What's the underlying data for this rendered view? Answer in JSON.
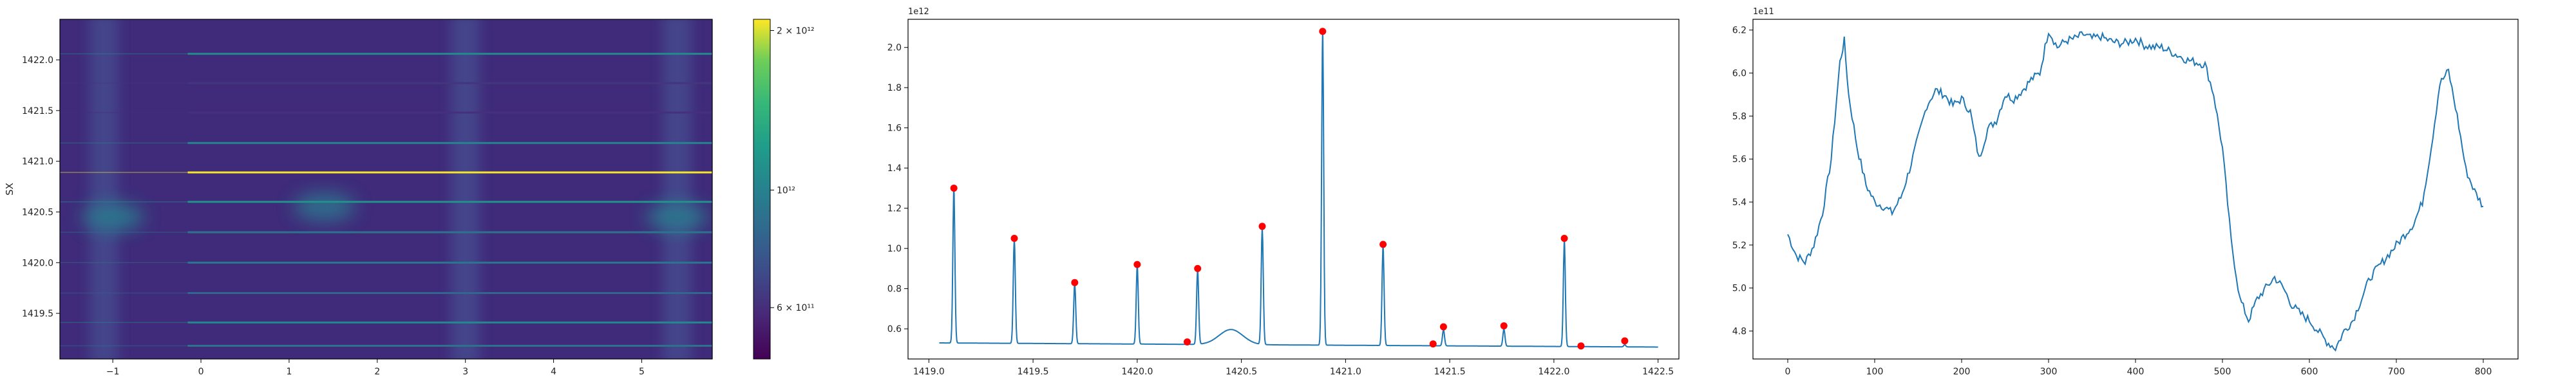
{
  "chart_data": [
    {
      "type": "heatmap",
      "ylabel": "SX",
      "xlabel": "",
      "xlim": [
        -1.6,
        5.8
      ],
      "ylim": [
        1419.05,
        1422.4
      ],
      "xticks": [
        -1,
        0,
        1,
        2,
        3,
        4,
        5
      ],
      "yticks": [
        1419.5,
        1420.0,
        1420.5,
        1421.0,
        1421.5,
        1422.0
      ],
      "ytick_labels": [
        "1419.5",
        "1420.0",
        "1420.5",
        "1421.0",
        "1421.5",
        "1422.0"
      ],
      "colormap": "viridis",
      "color_scale": "log",
      "colorbar": {
        "range": [
          480000000000,
          2100000000000
        ],
        "ticks": [
          {
            "value": 2000000000000,
            "label": "2 × 10¹²"
          },
          {
            "value": 1000000000000,
            "label": "10¹²"
          },
          {
            "value": 600000000000,
            "label": "6 × 10¹¹"
          }
        ]
      },
      "horizontal_lines": [
        {
          "y": 1419.18,
          "value": 890000000000
        },
        {
          "y": 1419.41,
          "value": 1050000000000
        },
        {
          "y": 1419.7,
          "value": 830000000000
        },
        {
          "y": 1420.0,
          "value": 920000000000
        },
        {
          "y": 1420.3,
          "value": 900000000000
        },
        {
          "y": 1420.6,
          "value": 1110000000000
        },
        {
          "y": 1420.89,
          "value": 2080000000000
        },
        {
          "y": 1421.18,
          "value": 1020000000000
        },
        {
          "y": 1421.48,
          "value": 600000000000
        },
        {
          "y": 1421.77,
          "value": 620000000000
        },
        {
          "y": 1422.06,
          "value": 1050000000000
        }
      ],
      "hotspots": [
        {
          "x": -1.0,
          "y": 1420.45,
          "value": 950000000000
        },
        {
          "x": 1.4,
          "y": 1420.55,
          "value": 900000000000
        },
        {
          "x": 5.4,
          "y": 1420.45,
          "value": 950000000000
        }
      ],
      "bright_bands_x": [
        -1.1,
        3.0,
        5.4
      ]
    },
    {
      "type": "line",
      "xlabel": "",
      "ylabel": "",
      "xlim": [
        1418.9,
        1422.6
      ],
      "ylim": [
        450000000000,
        2140000000000
      ],
      "xticks": [
        1419.0,
        1419.5,
        1420.0,
        1420.5,
        1421.0,
        1421.5,
        1422.0,
        1422.5
      ],
      "xtick_labels": [
        "1419.0",
        "1419.5",
        "1420.0",
        "1420.5",
        "1421.0",
        "1421.5",
        "1422.0",
        "1422.5"
      ],
      "yticks": [
        600000000000,
        800000000000,
        1000000000000,
        1200000000000,
        1400000000000,
        1600000000000,
        1800000000000,
        2000000000000
      ],
      "ytick_labels": [
        "0.6",
        "0.8",
        "1.0",
        "1.2",
        "1.4",
        "1.6",
        "1.8",
        "2.0"
      ],
      "offset_text": "1e12",
      "baseline": 530000000000,
      "bump": {
        "x": 1420.45,
        "value": 605000000000,
        "width": 0.08
      },
      "peaks": [
        {
          "x": 1419.12,
          "y": 1300000000000
        },
        {
          "x": 1419.41,
          "y": 1050000000000
        },
        {
          "x": 1419.7,
          "y": 830000000000
        },
        {
          "x": 1420.0,
          "y": 920000000000
        },
        {
          "x": 1420.24,
          "y": 535000000000
        },
        {
          "x": 1420.29,
          "y": 900000000000
        },
        {
          "x": 1420.6,
          "y": 1110000000000
        },
        {
          "x": 1420.89,
          "y": 2080000000000
        },
        {
          "x": 1421.18,
          "y": 1020000000000
        },
        {
          "x": 1421.42,
          "y": 525000000000
        },
        {
          "x": 1421.47,
          "y": 610000000000
        },
        {
          "x": 1421.76,
          "y": 615000000000
        },
        {
          "x": 1422.05,
          "y": 1050000000000
        },
        {
          "x": 1422.13,
          "y": 515000000000
        },
        {
          "x": 1422.34,
          "y": 540000000000
        }
      ],
      "line_color": "#1f77b4",
      "marker_color": "#ff0000"
    },
    {
      "type": "line",
      "xlabel": "",
      "ylabel": "",
      "xlim": [
        -40,
        840
      ],
      "ylim": [
        467000000000,
        625000000000
      ],
      "xticks": [
        0,
        100,
        200,
        300,
        400,
        500,
        600,
        700,
        800
      ],
      "xtick_labels": [
        "0",
        "100",
        "200",
        "300",
        "400",
        "500",
        "600",
        "700",
        "800"
      ],
      "yticks": [
        480000000000,
        500000000000,
        520000000000,
        540000000000,
        560000000000,
        580000000000,
        600000000000,
        620000000000
      ],
      "ytick_labels": [
        "4.8",
        "5.0",
        "5.2",
        "5.4",
        "5.6",
        "5.8",
        "6.0",
        "6.2"
      ],
      "offset_text": "1e11",
      "line_color": "#1f77b4",
      "x": [
        0,
        10,
        20,
        30,
        40,
        50,
        60,
        65,
        70,
        80,
        90,
        100,
        110,
        120,
        130,
        140,
        150,
        160,
        170,
        180,
        190,
        200,
        210,
        220,
        230,
        240,
        250,
        260,
        270,
        280,
        290,
        300,
        310,
        320,
        330,
        340,
        350,
        360,
        370,
        380,
        390,
        400,
        410,
        420,
        430,
        440,
        450,
        460,
        470,
        480,
        490,
        500,
        510,
        520,
        530,
        540,
        550,
        560,
        570,
        580,
        590,
        600,
        610,
        620,
        630,
        640,
        650,
        660,
        670,
        680,
        690,
        700,
        710,
        720,
        730,
        740,
        750,
        760,
        770,
        780,
        790,
        800
      ],
      "y": [
        525000000000,
        515000000000,
        512000000000,
        520000000000,
        535000000000,
        560000000000,
        605000000000,
        615000000000,
        590000000000,
        565000000000,
        548000000000,
        540000000000,
        538000000000,
        535000000000,
        542000000000,
        555000000000,
        570000000000,
        585000000000,
        592000000000,
        590000000000,
        585000000000,
        588000000000,
        582000000000,
        560000000000,
        574000000000,
        578000000000,
        590000000000,
        588000000000,
        592000000000,
        597000000000,
        600000000000,
        620000000000,
        612000000000,
        615000000000,
        616000000000,
        618000000000,
        616000000000,
        617000000000,
        615000000000,
        614000000000,
        614000000000,
        616000000000,
        613000000000,
        612000000000,
        612000000000,
        610000000000,
        608000000000,
        606000000000,
        605000000000,
        604000000000,
        590000000000,
        565000000000,
        522000000000,
        495000000000,
        485000000000,
        495000000000,
        500000000000,
        505000000000,
        500000000000,
        492000000000,
        488000000000,
        485000000000,
        480000000000,
        475000000000,
        472000000000,
        480000000000,
        485000000000,
        495000000000,
        505000000000,
        510000000000,
        515000000000,
        520000000000,
        525000000000,
        530000000000,
        540000000000,
        565000000000,
        595000000000,
        601000000000,
        580000000000,
        555000000000,
        545000000000,
        538000000000
      ]
    }
  ]
}
